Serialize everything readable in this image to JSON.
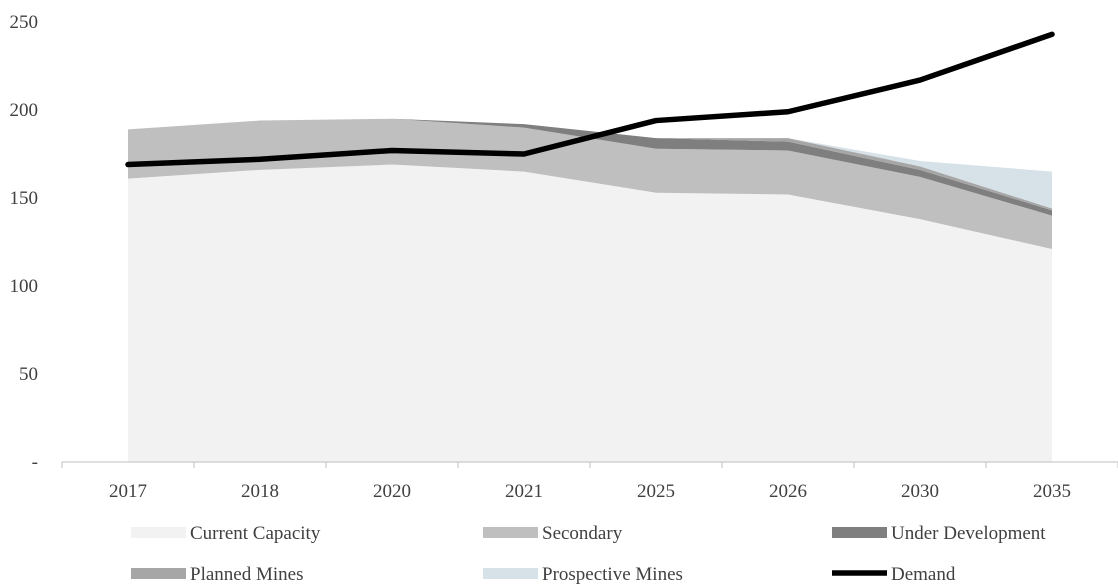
{
  "chart_data": {
    "type": "area",
    "title": "",
    "xlabel": "",
    "ylabel": "",
    "categories": [
      "2017",
      "2018",
      "2020",
      "2021",
      "2025",
      "2026",
      "2030",
      "2035"
    ],
    "y_tick_labels": [
      "-",
      "50",
      "100",
      "150",
      "200",
      "250"
    ],
    "ylim": [
      0,
      250
    ],
    "grid": false,
    "legend_position": "bottom",
    "stacked": true,
    "series": [
      {
        "name": "Current Capacity",
        "kind": "area",
        "color": "#f2f2f2",
        "values": [
          161,
          166,
          169,
          165,
          153,
          152,
          138,
          121
        ]
      },
      {
        "name": "Secondary",
        "kind": "area",
        "color": "#bfbfbf",
        "values": [
          28,
          28,
          26,
          25,
          25,
          25,
          24,
          19
        ]
      },
      {
        "name": "Under Development",
        "kind": "area",
        "color": "#7f7f7f",
        "values": [
          0,
          0,
          0,
          2,
          6,
          5,
          4,
          3
        ]
      },
      {
        "name": "Planned Mines",
        "kind": "area",
        "color": "#a6a6a6",
        "values": [
          0,
          0,
          0,
          0,
          0,
          2,
          2,
          1
        ]
      },
      {
        "name": "Prospective Mines",
        "kind": "area",
        "color": "#d6e1e8",
        "values": [
          0,
          0,
          0,
          0,
          0,
          0,
          3,
          21
        ]
      },
      {
        "name": "Demand",
        "kind": "line",
        "color": "#000000",
        "values": [
          169,
          172,
          177,
          175,
          194,
          199,
          217,
          243
        ]
      }
    ]
  }
}
